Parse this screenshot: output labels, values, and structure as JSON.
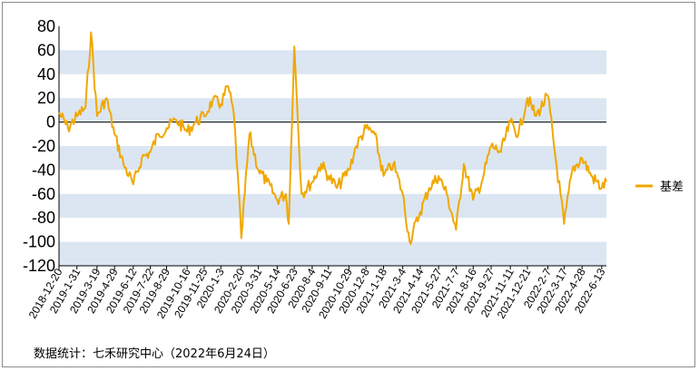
{
  "chart_data": {
    "type": "line",
    "title": "",
    "xlabel": "",
    "ylabel": "",
    "ylim": [
      -120,
      80
    ],
    "yticks": [
      80,
      60,
      40,
      20,
      0,
      -20,
      -40,
      -60,
      -80,
      -100,
      -120
    ],
    "grid": "alternating horizontal bands",
    "legend": "right",
    "colors": {
      "series": "#f0a800",
      "band": "#dce6f2",
      "zero_line": "#000000"
    },
    "xtick_labels": [
      "2018-12-20",
      "2019-1-31",
      "2019-3-19",
      "2019-4-29",
      "2019-6-12",
      "2019-7-22",
      "2019-8-29",
      "2019-10-16",
      "2019-11-25",
      "2020-1-3",
      "2020-2-20",
      "2020-3-31",
      "2020-5-14",
      "2020-6-23",
      "2020-8-4",
      "2020-9-11",
      "2020-10-29",
      "2020-12-8",
      "2021-1-18",
      "2021-3-4",
      "2021-4-14",
      "2021-5-27",
      "2021-7-7",
      "2021-8-16",
      "2021-9-27",
      "2021-11-11",
      "2021-12-21",
      "2022-2-7",
      "2022-3-17",
      "2022-4-28",
      "2022-6-13"
    ],
    "series": [
      {
        "name": "基差",
        "x": [
          "2018-12-20",
          "2019-1-10",
          "2019-1-31",
          "2019-2-20",
          "2019-3-5",
          "2019-3-19",
          "2019-4-10",
          "2019-4-29",
          "2019-5-20",
          "2019-6-12",
          "2019-7-2",
          "2019-7-22",
          "2019-8-10",
          "2019-8-29",
          "2019-9-20",
          "2019-10-16",
          "2019-11-5",
          "2019-11-25",
          "2019-12-15",
          "2020-1-3",
          "2020-1-20",
          "2020-2-3",
          "2020-2-20",
          "2020-3-10",
          "2020-3-31",
          "2020-4-20",
          "2020-5-14",
          "2020-6-3",
          "2020-6-10",
          "2020-6-23",
          "2020-7-10",
          "2020-8-4",
          "2020-8-25",
          "2020-9-11",
          "2020-10-1",
          "2020-10-29",
          "2020-11-15",
          "2020-12-8",
          "2020-12-28",
          "2021-1-18",
          "2021-2-10",
          "2021-3-4",
          "2021-3-20",
          "2021-4-14",
          "2021-5-5",
          "2021-5-27",
          "2021-6-15",
          "2021-7-7",
          "2021-7-25",
          "2021-8-16",
          "2021-9-5",
          "2021-9-27",
          "2021-10-20",
          "2021-11-11",
          "2021-11-30",
          "2021-12-21",
          "2022-1-10",
          "2022-2-7",
          "2022-2-25",
          "2022-3-17",
          "2022-4-5",
          "2022-4-28",
          "2022-5-20",
          "2022-6-13",
          "2022-6-24"
        ],
        "values": [
          8,
          -5,
          5,
          12,
          75,
          5,
          20,
          -10,
          -35,
          -52,
          -30,
          -25,
          -10,
          -5,
          2,
          -8,
          0,
          5,
          18,
          15,
          30,
          5,
          -97,
          -10,
          -40,
          -50,
          -65,
          -60,
          -85,
          63,
          -60,
          -50,
          -35,
          -45,
          -55,
          -40,
          -20,
          -5,
          -10,
          -45,
          -35,
          -60,
          -100,
          -75,
          -55,
          -45,
          -60,
          -90,
          -35,
          -65,
          -50,
          -20,
          -25,
          0,
          -10,
          20,
          5,
          22,
          -30,
          -85,
          -40,
          -30,
          -45,
          -55,
          -50
        ]
      }
    ]
  },
  "source_text": "数据统计：七禾研究中心（2022年6月24日）"
}
